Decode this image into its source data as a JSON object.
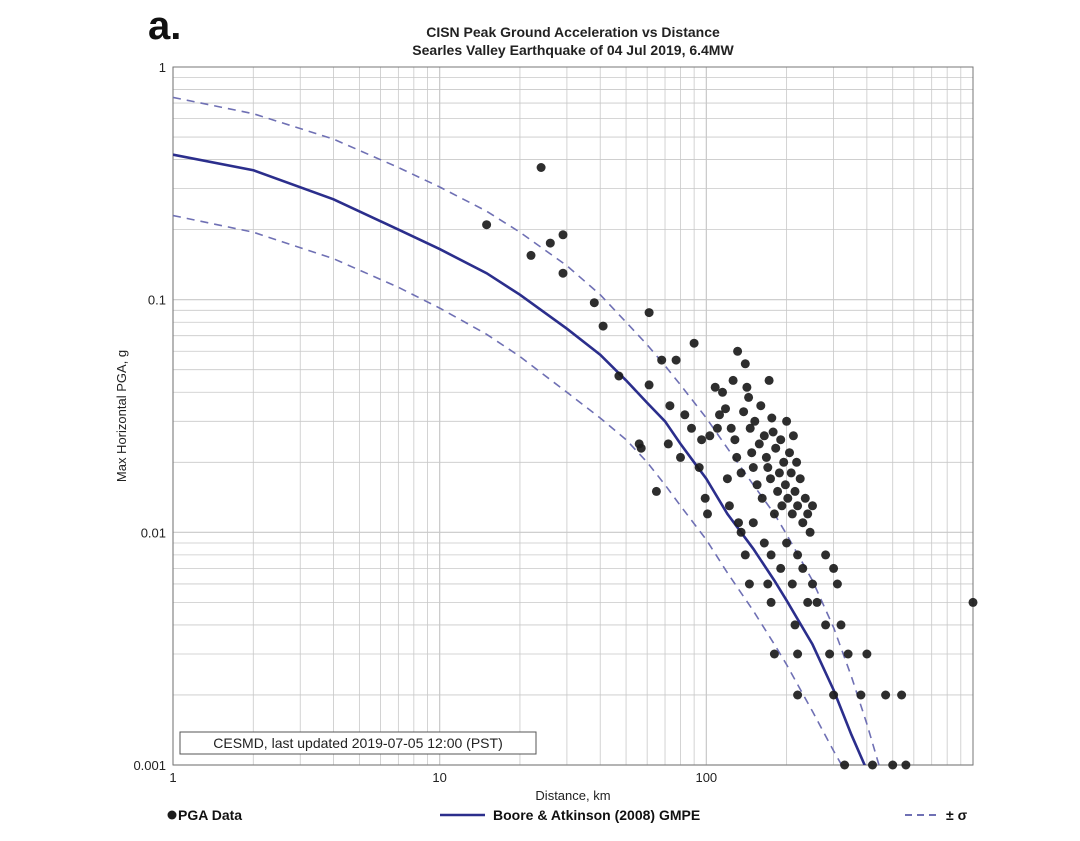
{
  "panel_label": "a.",
  "chart_data": {
    "type": "scatter",
    "title": "CISN Peak Ground Acceleration vs Distance",
    "subtitle": "Searles Valley Earthquake of 04 Jul 2019, 6.4MW",
    "xlabel": "Distance, km",
    "ylabel": "Max Horizontal PGA, g",
    "x_scale": "log",
    "y_scale": "log",
    "xlim": [
      1,
      1000
    ],
    "ylim": [
      0.001,
      1
    ],
    "x_ticks": [
      {
        "value": 1,
        "label": "1"
      },
      {
        "value": 10,
        "label": "10"
      },
      {
        "value": 100,
        "label": "100"
      }
    ],
    "y_ticks": [
      {
        "value": 1,
        "label": "1"
      },
      {
        "value": 0.1,
        "label": "0.1"
      },
      {
        "value": 0.01,
        "label": "0.01"
      },
      {
        "value": 0.001,
        "label": "0.001"
      }
    ],
    "grid": true,
    "annotation": "CESMD, last updated 2019-07-05 12:00 (PST)",
    "colors": {
      "points": "#1c1c1c",
      "gmpe": "#2b2e8c",
      "sigma": "#6f70b4",
      "grid": "#c8c8c8"
    },
    "legend": {
      "placement": "bottom",
      "items": [
        {
          "label": "PGA Data",
          "marker": "dot"
        },
        {
          "label": "Boore & Atkinson (2008) GMPE",
          "marker": "solid-line"
        },
        {
          "label": "± σ",
          "marker": "dashed-line"
        }
      ]
    },
    "series": [
      {
        "name": "PGA Data",
        "kind": "scatter",
        "points": [
          [
            15,
            0.21
          ],
          [
            22,
            0.155
          ],
          [
            24,
            0.37
          ],
          [
            26,
            0.175
          ],
          [
            29,
            0.19
          ],
          [
            29,
            0.13
          ],
          [
            38,
            0.097
          ],
          [
            41,
            0.077
          ],
          [
            47,
            0.047
          ],
          [
            56,
            0.024
          ],
          [
            57,
            0.023
          ],
          [
            61,
            0.088
          ],
          [
            61,
            0.043
          ],
          [
            65,
            0.015
          ],
          [
            68,
            0.055
          ],
          [
            72,
            0.024
          ],
          [
            73,
            0.035
          ],
          [
            77,
            0.055
          ],
          [
            80,
            0.021
          ],
          [
            83,
            0.032
          ],
          [
            88,
            0.028
          ],
          [
            90,
            0.065
          ],
          [
            94,
            0.019
          ],
          [
            96,
            0.025
          ],
          [
            99,
            0.014
          ],
          [
            101,
            0.012
          ],
          [
            103,
            0.026
          ],
          [
            108,
            0.042
          ],
          [
            110,
            0.028
          ],
          [
            112,
            0.032
          ],
          [
            115,
            0.04
          ],
          [
            118,
            0.034
          ],
          [
            120,
            0.017
          ],
          [
            122,
            0.013
          ],
          [
            124,
            0.028
          ],
          [
            126,
            0.045
          ],
          [
            128,
            0.025
          ],
          [
            130,
            0.021
          ],
          [
            131,
            0.06
          ],
          [
            132,
            0.011
          ],
          [
            135,
            0.018
          ],
          [
            138,
            0.033
          ],
          [
            140,
            0.053
          ],
          [
            142,
            0.042
          ],
          [
            144,
            0.038
          ],
          [
            146,
            0.028
          ],
          [
            148,
            0.022
          ],
          [
            150,
            0.019
          ],
          [
            152,
            0.03
          ],
          [
            155,
            0.016
          ],
          [
            158,
            0.024
          ],
          [
            160,
            0.035
          ],
          [
            162,
            0.014
          ],
          [
            165,
            0.026
          ],
          [
            168,
            0.021
          ],
          [
            170,
            0.019
          ],
          [
            172,
            0.045
          ],
          [
            174,
            0.017
          ],
          [
            176,
            0.031
          ],
          [
            178,
            0.027
          ],
          [
            180,
            0.012
          ],
          [
            182,
            0.023
          ],
          [
            185,
            0.015
          ],
          [
            188,
            0.018
          ],
          [
            190,
            0.025
          ],
          [
            192,
            0.013
          ],
          [
            195,
            0.02
          ],
          [
            198,
            0.016
          ],
          [
            200,
            0.03
          ],
          [
            202,
            0.014
          ],
          [
            205,
            0.022
          ],
          [
            208,
            0.018
          ],
          [
            210,
            0.012
          ],
          [
            212,
            0.026
          ],
          [
            215,
            0.015
          ],
          [
            218,
            0.02
          ],
          [
            220,
            0.013
          ],
          [
            225,
            0.017
          ],
          [
            230,
            0.011
          ],
          [
            235,
            0.014
          ],
          [
            240,
            0.012
          ],
          [
            245,
            0.01
          ],
          [
            250,
            0.013
          ],
          [
            135,
            0.01
          ],
          [
            150,
            0.011
          ],
          [
            165,
            0.009
          ],
          [
            175,
            0.008
          ],
          [
            200,
            0.009
          ],
          [
            220,
            0.008
          ],
          [
            140,
            0.008
          ],
          [
            190,
            0.007
          ],
          [
            230,
            0.007
          ],
          [
            250,
            0.006
          ],
          [
            280,
            0.008
          ],
          [
            300,
            0.007
          ],
          [
            145,
            0.006
          ],
          [
            170,
            0.006
          ],
          [
            210,
            0.006
          ],
          [
            240,
            0.005
          ],
          [
            260,
            0.005
          ],
          [
            310,
            0.006
          ],
          [
            175,
            0.005
          ],
          [
            215,
            0.004
          ],
          [
            280,
            0.004
          ],
          [
            320,
            0.004
          ],
          [
            180,
            0.003
          ],
          [
            220,
            0.003
          ],
          [
            290,
            0.003
          ],
          [
            340,
            0.003
          ],
          [
            400,
            0.003
          ],
          [
            220,
            0.002
          ],
          [
            300,
            0.002
          ],
          [
            380,
            0.002
          ],
          [
            470,
            0.002
          ],
          [
            540,
            0.002
          ],
          [
            330,
            0.001
          ],
          [
            420,
            0.001
          ],
          [
            500,
            0.001
          ],
          [
            560,
            0.001
          ],
          [
            1000,
            0.005
          ]
        ]
      },
      {
        "name": "Boore & Atkinson (2008) GMPE",
        "kind": "line",
        "points": [
          [
            1,
            0.42
          ],
          [
            2,
            0.36
          ],
          [
            4,
            0.27
          ],
          [
            7,
            0.2
          ],
          [
            10,
            0.165
          ],
          [
            15,
            0.13
          ],
          [
            20,
            0.105
          ],
          [
            30,
            0.075
          ],
          [
            40,
            0.058
          ],
          [
            50,
            0.045
          ],
          [
            60,
            0.036
          ],
          [
            70,
            0.03
          ],
          [
            80,
            0.024
          ],
          [
            90,
            0.02
          ],
          [
            100,
            0.017
          ],
          [
            120,
            0.012
          ],
          [
            150,
            0.0085
          ],
          [
            180,
            0.0062
          ],
          [
            200,
            0.0051
          ],
          [
            250,
            0.0033
          ],
          [
            300,
            0.0021
          ],
          [
            350,
            0.00135
          ],
          [
            400,
            0.00095
          ]
        ]
      },
      {
        "name": "+σ",
        "kind": "line",
        "dashed": true,
        "points": [
          [
            1,
            0.74
          ],
          [
            2,
            0.63
          ],
          [
            4,
            0.49
          ],
          [
            7,
            0.37
          ],
          [
            10,
            0.305
          ],
          [
            15,
            0.24
          ],
          [
            20,
            0.195
          ],
          [
            30,
            0.14
          ],
          [
            40,
            0.105
          ],
          [
            50,
            0.08
          ],
          [
            60,
            0.064
          ],
          [
            70,
            0.052
          ],
          [
            80,
            0.043
          ],
          [
            100,
            0.031
          ],
          [
            120,
            0.023
          ],
          [
            150,
            0.016
          ],
          [
            180,
            0.012
          ],
          [
            200,
            0.0098
          ],
          [
            250,
            0.0062
          ],
          [
            300,
            0.0039
          ],
          [
            350,
            0.0024
          ],
          [
            400,
            0.0015
          ],
          [
            450,
            0.00095
          ]
        ]
      },
      {
        "name": "-σ",
        "kind": "line",
        "dashed": true,
        "points": [
          [
            1,
            0.23
          ],
          [
            2,
            0.195
          ],
          [
            4,
            0.15
          ],
          [
            7,
            0.113
          ],
          [
            10,
            0.092
          ],
          [
            15,
            0.071
          ],
          [
            20,
            0.057
          ],
          [
            30,
            0.04
          ],
          [
            40,
            0.031
          ],
          [
            50,
            0.025
          ],
          [
            60,
            0.02
          ],
          [
            70,
            0.016
          ],
          [
            80,
            0.013
          ],
          [
            100,
            0.0093
          ],
          [
            120,
            0.0067
          ],
          [
            150,
            0.0046
          ],
          [
            180,
            0.0033
          ],
          [
            200,
            0.0027
          ],
          [
            250,
            0.0017
          ],
          [
            300,
            0.00115
          ],
          [
            330,
            0.00095
          ]
        ]
      }
    ]
  }
}
